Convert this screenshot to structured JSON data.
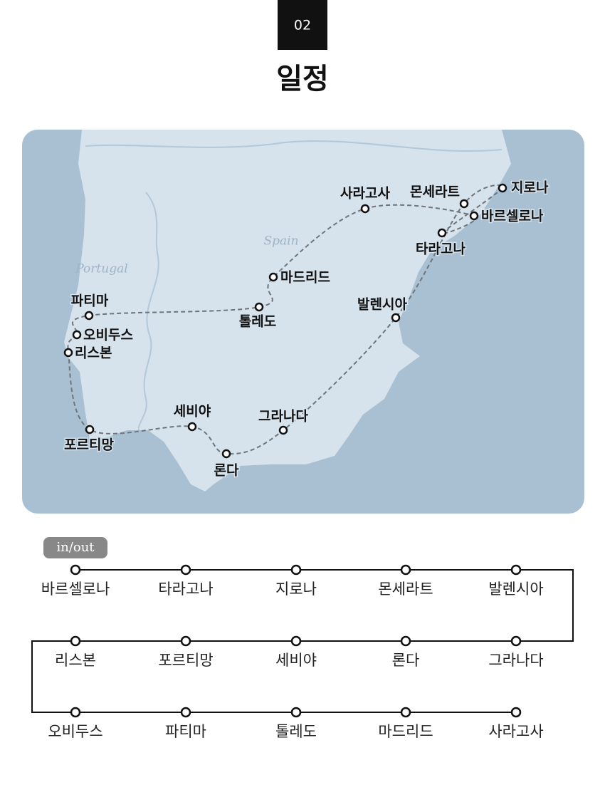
{
  "badge": "02",
  "title": "일정",
  "map": {
    "countries": [
      "Portugal",
      "Spain"
    ]
  },
  "itinerary": {
    "tag": "in/out",
    "stops": [
      "바르셀로나",
      "타라고나",
      "지로나",
      "몬세라트",
      "발렌시아",
      "그라나다",
      "론다",
      "세비야",
      "포르티망",
      "리스본",
      "오비두스",
      "파티마",
      "톨레도",
      "마드리드",
      "사라고사"
    ]
  }
}
